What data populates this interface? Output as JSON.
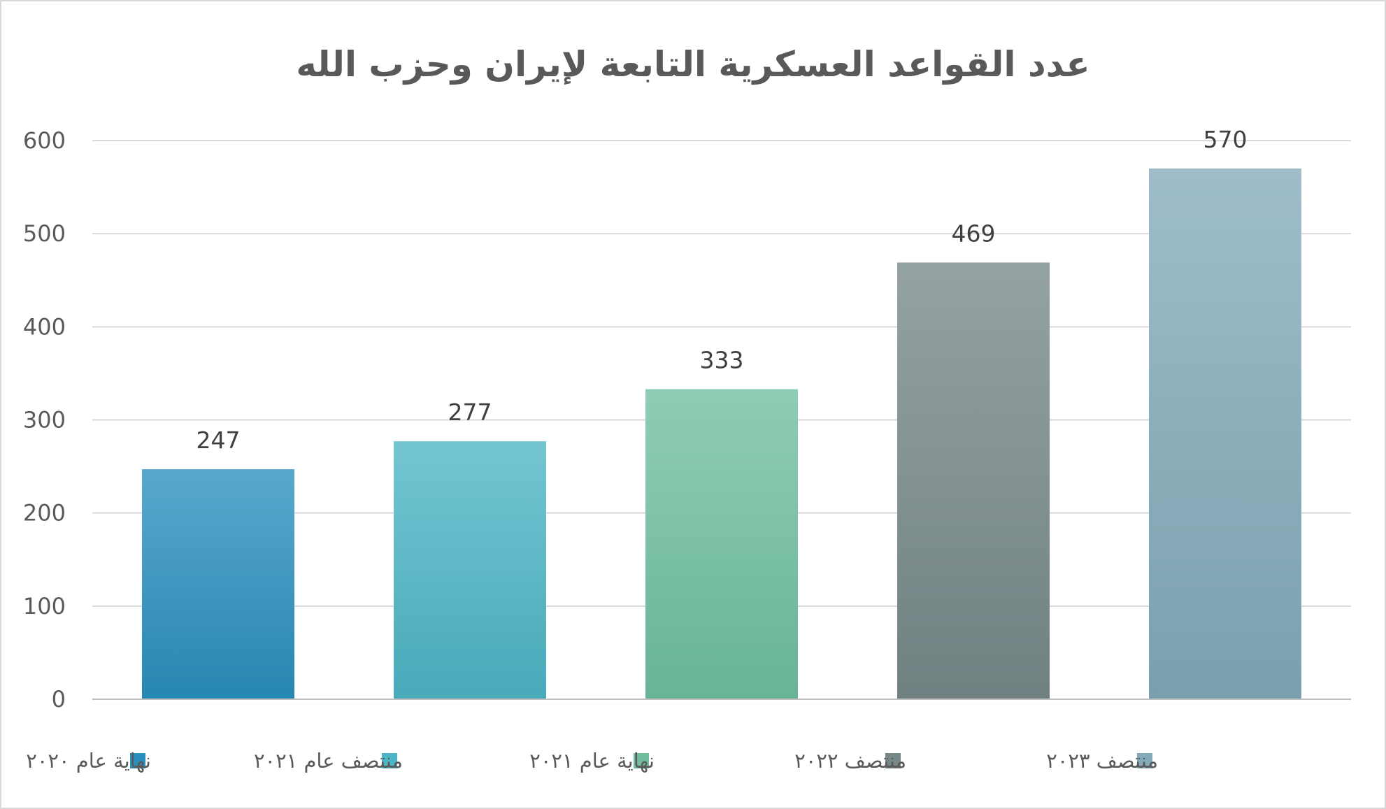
{
  "chart_data": {
    "type": "bar",
    "title": "عدد القواعد العسكرية التابعة لإيران وحزب الله",
    "categories": [
      "نهاية عام ٢٠٢٠",
      "منتصف عام ٢٠٢١",
      "نهاية عام ٢٠٢١",
      "منتصف ٢٠٢٢",
      "منتصف ٢٠٢٣"
    ],
    "values": [
      247,
      277,
      333,
      469,
      570
    ],
    "colors": [
      "#2a8fbd",
      "#4db5c5",
      "#6fbf9f",
      "#778889",
      "#82aab9"
    ],
    "data_labels": [
      "247",
      "277",
      "333",
      "469",
      "570"
    ],
    "y_ticks": [
      0,
      100,
      200,
      300,
      400,
      500,
      600
    ],
    "ylim": [
      0,
      600
    ],
    "grid": true,
    "legend_position": "bottom"
  }
}
